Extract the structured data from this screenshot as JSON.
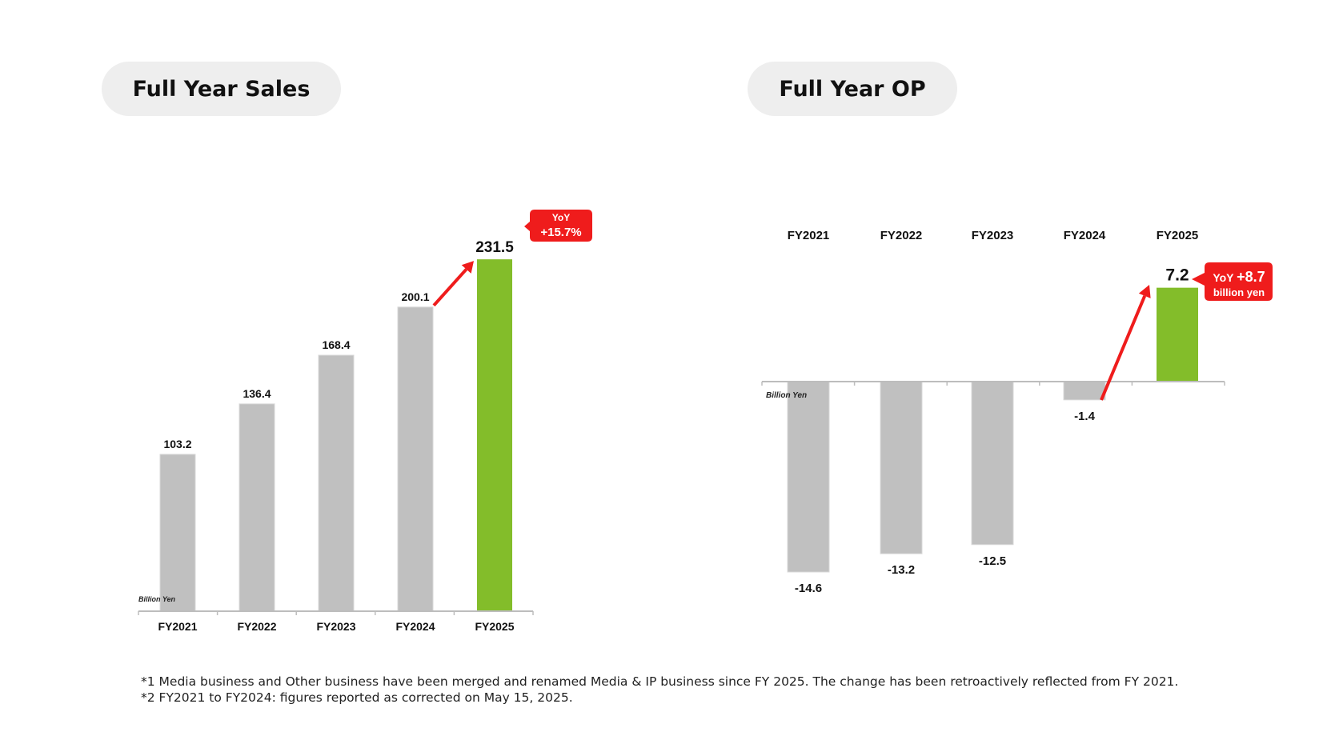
{
  "sales_panel": {
    "title": "Full Year Sales"
  },
  "op_panel": {
    "title": "Full Year OP"
  },
  "chart_data": [
    {
      "type": "bar",
      "title": "Full Year Sales",
      "unit_label": "Billion Yen",
      "categories": [
        "FY2021",
        "FY2022",
        "FY2023",
        "FY2024",
        "FY2025"
      ],
      "values": [
        103.2,
        136.4,
        168.4,
        200.1,
        231.5
      ],
      "labels": [
        "103.2",
        "136.4",
        "168.4",
        "200.1",
        "231.5"
      ],
      "highlight_index": 4,
      "colors": {
        "default": "#c0c0c0",
        "highlight": "#83bd2a",
        "callout": "#ef1c1c"
      },
      "callout": {
        "line1": "YoY",
        "line2": "+15.7%"
      }
    },
    {
      "type": "bar",
      "title": "Full Year OP",
      "unit_label": "Billion Yen",
      "categories": [
        "FY2021",
        "FY2022",
        "FY2023",
        "FY2024",
        "FY2025"
      ],
      "values": [
        -14.6,
        -13.2,
        -12.5,
        -1.4,
        7.2
      ],
      "labels": [
        "-14.6",
        "-13.2",
        "-12.5",
        "-1.4",
        "7.2"
      ],
      "highlight_index": 4,
      "colors": {
        "default": "#c0c0c0",
        "highlight": "#83bd2a",
        "callout": "#ef1c1c"
      },
      "callout": {
        "line1_prefix": "YoY",
        "line1_value": "+8.7",
        "line2": "billion yen"
      }
    }
  ],
  "footnotes": [
    "*1  Media business and Other business have been merged and renamed Media & IP business since FY 2025. The change has been retroactively reflected from FY 2021.",
    "*2  FY2021 to FY2024: figures reported as corrected on May 15, 2025."
  ]
}
